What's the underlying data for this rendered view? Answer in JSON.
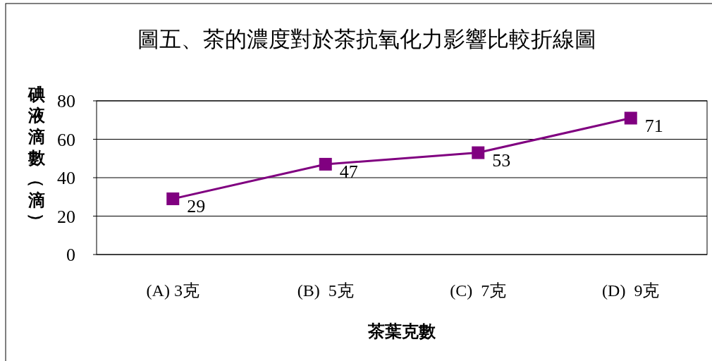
{
  "chart_data": {
    "type": "line",
    "title": "圖五、茶的濃度對於茶抗氧化力影響比較折線圖",
    "xlabel": "茶葉克數",
    "ylabel": "碘液滴數（滴）",
    "categories": [
      "(A) 3克",
      "(B)  5克",
      "(C)  7克",
      "(D)  9克"
    ],
    "series": [
      {
        "color": "#800080",
        "values": [
          29,
          47,
          53,
          71
        ]
      }
    ],
    "ylim": [
      0,
      80
    ],
    "yticks": [
      0,
      20,
      40,
      60,
      80
    ],
    "grid": "y",
    "marker": "square",
    "line_style": "solid",
    "data_labels": true
  }
}
